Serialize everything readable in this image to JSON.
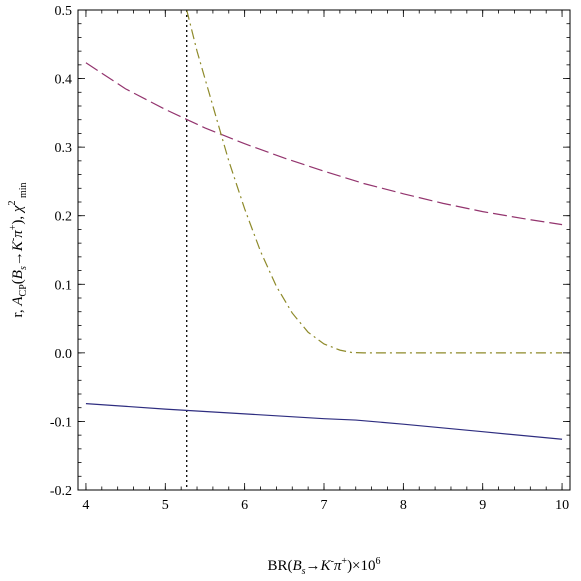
{
  "chart_data": {
    "type": "line",
    "xlabel": "BR(B_s→K⁻π⁺)×10⁶",
    "ylabel": "r, A_CP(B_s→K⁻π⁺), χ²_min",
    "xlim": [
      3.9,
      10.1
    ],
    "ylim": [
      -0.2,
      0.5
    ],
    "xticks": [
      4,
      5,
      6,
      7,
      8,
      9,
      10
    ],
    "xtick_labels": [
      "4",
      "5",
      "6",
      "7",
      "8",
      "9",
      "10"
    ],
    "yticks": [
      -0.2,
      -0.1,
      0.0,
      0.1,
      0.2,
      0.3,
      0.4,
      0.5
    ],
    "ytick_labels": [
      "-0.2",
      "-0.1",
      "0.0",
      "0.1",
      "0.2",
      "0.3",
      "0.4",
      "0.5"
    ],
    "grid": false,
    "vline": {
      "x": 5.27,
      "style": "dotted",
      "color": "#000000"
    },
    "series": [
      {
        "style": "solid",
        "color": "#2e2d80",
        "x": [
          4.0,
          5.0,
          6.0,
          7.0,
          7.4,
          8.0,
          9.0,
          10.0
        ],
        "y": [
          -0.074,
          -0.082,
          -0.089,
          -0.096,
          -0.098,
          -0.104,
          -0.115,
          -0.126
        ]
      },
      {
        "style": "dashed",
        "color": "#93346e",
        "x": [
          4.0,
          4.5,
          5.0,
          5.5,
          6.0,
          6.5,
          7.0,
          7.5,
          8.0,
          8.5,
          9.0,
          9.5,
          10.0
        ],
        "y": [
          0.423,
          0.385,
          0.355,
          0.328,
          0.305,
          0.284,
          0.265,
          0.247,
          0.232,
          0.218,
          0.206,
          0.196,
          0.187
        ]
      },
      {
        "style": "dash-dot",
        "color": "#8e8a2a",
        "x": [
          5.27,
          5.4,
          5.6,
          5.8,
          6.0,
          6.2,
          6.4,
          6.6,
          6.8,
          7.0,
          7.2,
          7.35,
          7.5,
          8.0,
          9.0,
          10.0
        ],
        "y": [
          0.5,
          0.44,
          0.36,
          0.28,
          0.21,
          0.148,
          0.097,
          0.058,
          0.03,
          0.013,
          0.004,
          0.0005,
          0.0,
          0.0,
          0.0,
          0.0
        ]
      }
    ]
  }
}
